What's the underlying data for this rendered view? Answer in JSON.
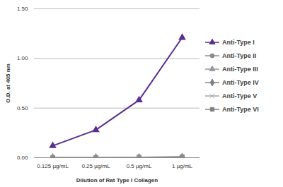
{
  "chart_data": {
    "type": "line",
    "x_label": "Dilution of Rat Type I Collagen",
    "y_label": "O.D. at 405 nm",
    "categories": [
      "0.125 µg/mL",
      "0.25 µg/mL",
      "0.5 µg/mL",
      "1 µg/mL"
    ],
    "series": [
      {
        "name": "Anti-Type I",
        "color": "#5b2d90",
        "marker": "triangle",
        "values": [
          0.12,
          0.28,
          0.58,
          1.21
        ]
      },
      {
        "name": "Anti-Type II",
        "color": "#8c8c8c",
        "marker": "circle",
        "values": [
          0.0,
          0.0,
          0.0,
          0.005
        ]
      },
      {
        "name": "Anti-Type III",
        "color": "#999999",
        "marker": "triangle",
        "values": [
          0.0,
          0.0,
          0.005,
          0.005
        ]
      },
      {
        "name": "Anti-Type IV",
        "color": "#7f7f7f",
        "marker": "diamond",
        "values": [
          0.0,
          0.0,
          0.0,
          0.005
        ]
      },
      {
        "name": "Anti-Type V",
        "color": "#a6a6a6",
        "marker": "times",
        "values": [
          0.0,
          0.0,
          0.0,
          0.005
        ]
      },
      {
        "name": "Anti-Type VI",
        "color": "#808080",
        "marker": "square",
        "values": [
          0.0,
          0.0,
          0.005,
          0.01
        ]
      }
    ],
    "ylim": [
      0,
      1.5
    ],
    "yticks": [
      {
        "value": 0,
        "label": "0.00"
      },
      {
        "value": 0.5,
        "label": "0.50"
      },
      {
        "value": 1,
        "label": "1.00"
      },
      {
        "value": 1.5,
        "label": "1.50"
      }
    ],
    "grid": true,
    "legend": "right"
  }
}
